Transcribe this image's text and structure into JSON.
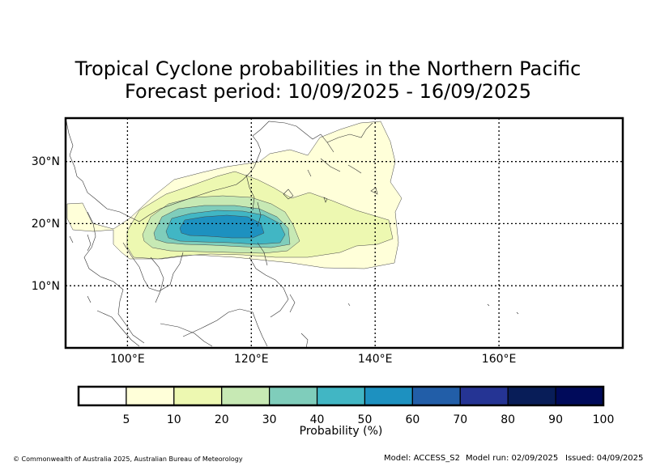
{
  "title_line1": "Tropical Cyclone probabilities in the Northern Pacific",
  "title_line2": "Forecast period: 10/09/2025 - 16/09/2025",
  "map": {
    "lon_range": [
      90,
      180
    ],
    "lat_range": [
      0,
      37
    ],
    "lon_gridlines": [
      100,
      120,
      140,
      160
    ],
    "lat_gridlines": [
      10,
      20,
      30
    ],
    "lon_labels": [
      "100°E",
      "120°E",
      "140°E",
      "160°E"
    ],
    "lat_labels": [
      "10°N",
      "20°N",
      "30°N"
    ],
    "gridline_style": "dotted"
  },
  "colorbar": {
    "title": "Probability (%)",
    "tick_labels": [
      "5",
      "10",
      "20",
      "30",
      "40",
      "50",
      "60",
      "70",
      "80",
      "90",
      "100"
    ],
    "colors": [
      "#ffffff",
      "#ffffd9",
      "#edf8b1",
      "#c7e9b4",
      "#7fcdbb",
      "#41b6c4",
      "#1d91c0",
      "#225ea8",
      "#253494",
      "#081d58",
      "#000a5a"
    ]
  },
  "footer": {
    "copyright": "© Commonwealth of Australia 2025, Australian Bureau of Meteorology",
    "model": "Model: ACCESS_S2",
    "model_run": "Model run: 02/09/2025",
    "issued": "Issued: 04/09/2025"
  }
}
